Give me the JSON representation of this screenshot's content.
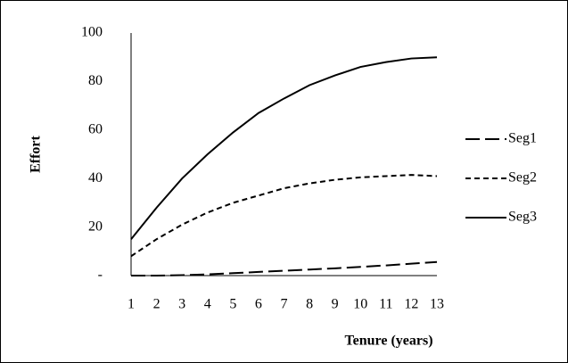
{
  "chart_data": {
    "type": "line",
    "x_label": "Tenure (years)",
    "y_label": "Effort",
    "categories": [
      "1",
      "2",
      "3",
      "4",
      "5",
      "6",
      "7",
      "8",
      "9",
      "10",
      "11",
      "12",
      "13"
    ],
    "series": [
      {
        "name": "Seg1",
        "color": "#000000",
        "dash": "long",
        "values": [
          0,
          0,
          0.2,
          0.5,
          1,
          1.5,
          2,
          2.5,
          3,
          3.6,
          4.2,
          4.9,
          5.6
        ]
      },
      {
        "name": "Seg2",
        "color": "#000000",
        "dash": "short",
        "values": [
          8,
          15,
          21,
          26,
          30,
          33,
          36,
          38,
          39.5,
          40.5,
          41,
          41.5,
          41
        ]
      },
      {
        "name": "Seg3",
        "color": "#000000",
        "dash": "solid",
        "values": [
          15,
          28,
          40,
          50,
          59,
          67,
          73,
          78.5,
          82.5,
          86,
          88,
          89.5,
          90
        ]
      }
    ],
    "ylim": [
      0,
      100
    ],
    "yticks": [
      {
        "value": 0,
        "label": "-"
      },
      20,
      40,
      60,
      80,
      100
    ],
    "grid": false,
    "legend": "right"
  }
}
